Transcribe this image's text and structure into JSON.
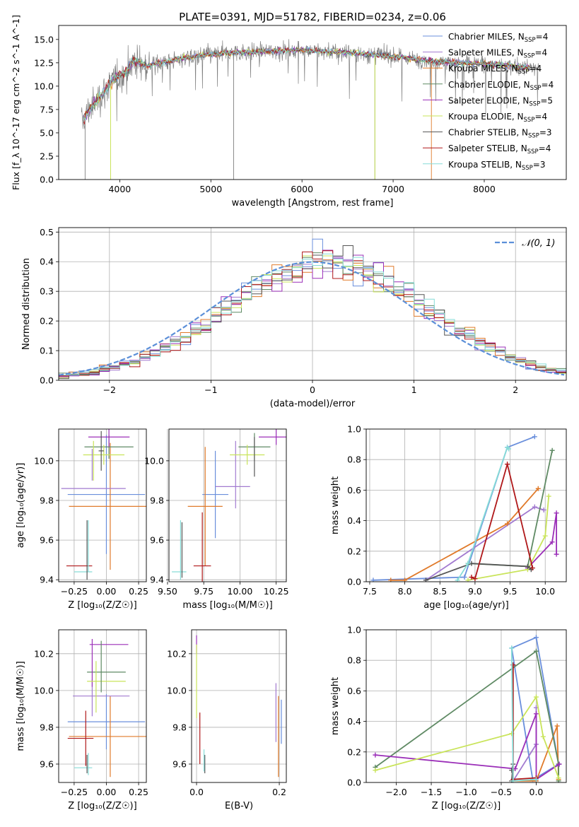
{
  "colors": {
    "Chabrier MILES": "#6a8fdc",
    "Salpeter MILES": "#a27ad0",
    "Kroupa MILES": "#e07a2a",
    "Chabrier ELODIE": "#5f8a64",
    "Salpeter ELODIE": "#9b2fb8",
    "Kroupa ELODIE": "#c9e45a",
    "Chabrier STELIB": "#555555",
    "Salpeter STELIB": "#b0181a",
    "Kroupa STELIB": "#86dcd7",
    "gaussian": "#5b8fd8",
    "data": "#808080",
    "pink": "#e58aa8"
  },
  "chart_data": [
    {
      "id": "spectrum",
      "type": "line",
      "title": "PLATE=0391, MJD=51782, FIBERID=0234, z=0.06",
      "xlabel": "wavelength [Angstrom, rest frame]",
      "ylabel": "Flux [f_λ 10^-17 erg cm^-2 s^-1 A^-1]",
      "xlim": [
        3330,
        8900
      ],
      "ylim": [
        0,
        16.5
      ],
      "xticks": [
        4000,
        5000,
        6000,
        7000,
        8000
      ],
      "yticks": [
        0.0,
        2.5,
        5.0,
        7.5,
        10.0,
        12.5,
        15.0
      ],
      "legend_position": "right",
      "legend": [
        {
          "model": "Chabrier MILES",
          "label": "Chabrier MILES, N",
          "sub": "SSP",
          "tail": "=4"
        },
        {
          "model": "Salpeter MILES",
          "label": "Salpeter MILES, N",
          "sub": "SSP",
          "tail": "=4"
        },
        {
          "model": "Kroupa MILES",
          "label": "Kroupa MILES, N",
          "sub": "SSP",
          "tail": "=4"
        },
        {
          "model": "Chabrier ELODIE",
          "label": "Chabrier ELODIE, N",
          "sub": "SSP",
          "tail": "=4"
        },
        {
          "model": "Salpeter ELODIE",
          "label": "Salpeter ELODIE, N",
          "sub": "SSP",
          "tail": "=5"
        },
        {
          "model": "Kroupa ELODIE",
          "label": "Kroupa ELODIE, N",
          "sub": "SSP",
          "tail": "=4"
        },
        {
          "model": "Chabrier STELIB",
          "label": "Chabrier STELIB, N",
          "sub": "SSP",
          "tail": "=3"
        },
        {
          "model": "Salpeter STELIB",
          "label": "Salpeter STELIB, N",
          "sub": "SSP",
          "tail": "=4"
        },
        {
          "model": "Kroupa STELIB",
          "label": "Kroupa STELIB, N",
          "sub": "SSP",
          "tail": "=3"
        }
      ],
      "continuum": [
        [
          3580,
          6.0
        ],
        [
          3650,
          7.3
        ],
        [
          3750,
          8.5
        ],
        [
          3850,
          9.7
        ],
        [
          3950,
          10.9
        ],
        [
          4050,
          11.3
        ],
        [
          4150,
          12.7
        ],
        [
          4300,
          12.2
        ],
        [
          4500,
          12.6
        ],
        [
          4750,
          13.1
        ],
        [
          5000,
          13.4
        ],
        [
          5250,
          13.6
        ],
        [
          5500,
          13.7
        ],
        [
          5750,
          13.8
        ],
        [
          6000,
          13.9
        ],
        [
          6250,
          13.7
        ],
        [
          6500,
          13.6
        ],
        [
          6750,
          13.4
        ],
        [
          7000,
          13.2
        ],
        [
          7250,
          12.9
        ],
        [
          7500,
          12.6
        ],
        [
          7750,
          12.5
        ],
        [
          8000,
          12.4
        ],
        [
          8250,
          12.2
        ],
        [
          8500,
          12.0
        ],
        [
          8600,
          11.9
        ]
      ],
      "data_noise_amplitude": 1.6
    },
    {
      "id": "residuals",
      "type": "step-histogram",
      "xlabel": "(data-model)/error",
      "ylabel": "Normed distribution",
      "xlim": [
        -2.5,
        2.5
      ],
      "ylim": [
        0,
        0.515
      ],
      "xticks": [
        -2,
        -1,
        0,
        1,
        2
      ],
      "yticks": [
        0.0,
        0.1,
        0.2,
        0.3,
        0.4,
        0.5
      ],
      "legend": "𝒩(0, 1)",
      "legend_position": "top-right",
      "bin_width": 0.1,
      "series_models": [
        "Chabrier MILES",
        "Salpeter MILES",
        "Kroupa MILES",
        "Chabrier ELODIE",
        "Salpeter ELODIE",
        "Kroupa ELODIE",
        "Chabrier STELIB",
        "Salpeter STELIB",
        "Kroupa STELIB"
      ]
    },
    {
      "id": "age_vs_Z",
      "type": "errorbar",
      "xlabel": "Z [log₁₀(Z/Z☉)]",
      "ylabel": "age  [log₁₀(age/yr)]",
      "xlim": [
        -0.37,
        0.31
      ],
      "ylim": [
        9.39,
        10.16
      ],
      "xticks": [
        -0.25,
        0.0,
        0.25
      ],
      "yticks": [
        9.4,
        9.6,
        9.8,
        10.0
      ],
      "points": [
        {
          "model": "Chabrier MILES",
          "x": 0.0,
          "xerr": 0.3,
          "y": 9.83,
          "yerr": 0.3
        },
        {
          "model": "Kroupa MILES",
          "x": 0.03,
          "xerr": 0.32,
          "y": 9.77,
          "yerr": 0.32
        },
        {
          "model": "Chabrier ELODIE",
          "x": 0.02,
          "xerr": 0.19,
          "y": 10.07,
          "yerr": 0.06
        },
        {
          "model": "Salpeter ELODIE",
          "x": 0.02,
          "xerr": 0.16,
          "y": 10.12,
          "yerr": 0.05
        },
        {
          "model": "Kroupa ELODIE",
          "x": -0.02,
          "xerr": 0.16,
          "y": 10.03,
          "yerr": 0.05
        },
        {
          "model": "Chabrier STELIB",
          "x": -0.04,
          "xerr": 0.02,
          "y": 10.05,
          "yerr": 0.1
        },
        {
          "model": "Salpeter STELIB",
          "x": -0.21,
          "xerr": 0.1,
          "y": 9.47,
          "yerr": 0.0
        },
        {
          "model": "Kroupa STELIB",
          "x": -0.18,
          "xerr": 0.07,
          "y": 9.44,
          "yerr": 0.0
        },
        {
          "model": "Chabrier STELIB",
          "x": -0.15,
          "xerr": 0.0,
          "y": 9.55,
          "yerr": 0.15
        },
        {
          "model": "Kroupa STELIB",
          "x": -0.14,
          "xerr": 0.0,
          "y": 9.57,
          "yerr": 0.13
        },
        {
          "model": "Salpeter MILES",
          "x": -0.1,
          "xerr": 0.25,
          "y": 9.86,
          "yerr": 0.0
        },
        {
          "model": "Salpeter MILES",
          "x": -0.11,
          "xerr": 0.0,
          "y": 9.98,
          "yerr": 0.08
        },
        {
          "model": "Kroupa ELODIE",
          "x": -0.1,
          "xerr": 0.0,
          "y": 10.0,
          "yerr": 0.1
        }
      ]
    },
    {
      "id": "age_vs_mass",
      "type": "errorbar",
      "xlabel": "mass [log₁₀(M/M☉)]",
      "ylabel": "",
      "xlim": [
        9.51,
        10.32
      ],
      "ylim": [
        9.39,
        10.16
      ],
      "xticks": [
        9.5,
        9.75,
        10.0,
        10.25
      ],
      "yticks": [
        9.4,
        9.6,
        9.8,
        10.0
      ],
      "points": [
        {
          "model": "Chabrier MILES",
          "x": 9.83,
          "xerr": 0.09,
          "y": 9.83,
          "yerr": 0.22
        },
        {
          "model": "Kroupa MILES",
          "x": 9.76,
          "xerr": 0.12,
          "y": 9.77,
          "yerr": 0.3
        },
        {
          "model": "Salpeter MILES",
          "x": 9.95,
          "xerr": 0.12,
          "y": 9.87,
          "yerr": 0.0
        },
        {
          "model": "Salpeter MILES",
          "x": 9.97,
          "xerr": 0.0,
          "y": 9.93,
          "yerr": 0.17
        },
        {
          "model": "Chabrier ELODIE",
          "x": 10.1,
          "xerr": 0.11,
          "y": 10.07,
          "yerr": 0.07
        },
        {
          "model": "Salpeter ELODIE",
          "x": 10.25,
          "xerr": 0.12,
          "y": 10.12,
          "yerr": 0.04
        },
        {
          "model": "Kroupa ELODIE",
          "x": 10.05,
          "xerr": 0.12,
          "y": 10.03,
          "yerr": 0.05
        },
        {
          "model": "Chabrier STELIB",
          "x": 10.1,
          "xerr": 0.0,
          "y": 10.02,
          "yerr": 0.1
        },
        {
          "model": "Salpeter STELIB",
          "x": 9.74,
          "xerr": 0.06,
          "y": 9.47,
          "yerr": 0.27
        },
        {
          "model": "Kroupa STELIB",
          "x": 9.58,
          "xerr": 0.05,
          "y": 9.44,
          "yerr": 0.0
        },
        {
          "model": "Chabrier STELIB",
          "x": 9.6,
          "xerr": 0.0,
          "y": 9.55,
          "yerr": 0.14
        },
        {
          "model": "Kroupa STELIB",
          "x": 9.59,
          "xerr": 0.0,
          "y": 9.55,
          "yerr": 0.15
        }
      ]
    },
    {
      "id": "mass_weight_vs_age",
      "type": "line",
      "xlabel": "age  [log₁₀(age/yr)]",
      "ylabel": "mass weight",
      "xlim": [
        7.45,
        10.3
      ],
      "ylim": [
        0,
        1.0
      ],
      "xticks": [
        7.5,
        8.0,
        8.5,
        9.0,
        9.5,
        10.0
      ],
      "yticks": [
        0.0,
        0.2,
        0.4,
        0.6,
        0.8,
        1.0
      ],
      "series": [
        {
          "model": "Chabrier MILES",
          "x": [
            7.55,
            8.85,
            9.46,
            9.85
          ],
          "y": [
            0.01,
            0.03,
            0.88,
            0.95
          ]
        },
        {
          "model": "Salpeter MILES",
          "x": [
            8.3,
            9.85,
            9.98
          ],
          "y": [
            0.01,
            0.49,
            0.47
          ]
        },
        {
          "model": "Kroupa MILES",
          "x": [
            7.8,
            8.0,
            9.46,
            9.9
          ],
          "y": [
            0.01,
            0.01,
            0.38,
            0.61
          ]
        },
        {
          "model": "Chabrier ELODIE",
          "x": [
            8.9,
            9.75,
            10.1
          ],
          "y": [
            0.12,
            0.1,
            0.86
          ]
        },
        {
          "model": "Salpeter ELODIE",
          "x": [
            9.75,
            10.1,
            10.16,
            10.16
          ],
          "y": [
            0.09,
            0.26,
            0.45,
            0.18
          ]
        },
        {
          "model": "Kroupa ELODIE",
          "x": [
            8.9,
            9.75,
            10.0,
            10.05
          ],
          "y": [
            0.01,
            0.08,
            0.3,
            0.56
          ]
        },
        {
          "model": "Chabrier STELIB",
          "x": [
            8.3,
            8.95,
            9.75,
            9.8
          ],
          "y": [
            0.01,
            0.12,
            0.1,
            0.08
          ]
        },
        {
          "model": "Salpeter STELIB",
          "x": [
            8.95,
            9.0,
            9.46,
            9.82
          ],
          "y": [
            0.03,
            0.02,
            0.77,
            0.09
          ]
        },
        {
          "model": "Kroupa STELIB",
          "x": [
            8.75,
            8.9,
            9.46,
            9.48
          ],
          "y": [
            0.01,
            0.12,
            0.88,
            0.87
          ]
        }
      ]
    },
    {
      "id": "mass_vs_Z",
      "type": "errorbar",
      "xlabel": "Z [log₁₀(Z/Z☉)]",
      "ylabel": "mass [log₁₀(M/M☉)]",
      "xlim": [
        -0.37,
        0.31
      ],
      "ylim": [
        9.5,
        10.33
      ],
      "xticks": [
        -0.25,
        0.0,
        0.25
      ],
      "yticks": [
        9.6,
        9.8,
        10.0,
        10.2
      ],
      "points": [
        {
          "model": "Chabrier MILES",
          "x": 0.0,
          "xerr": 0.3,
          "y": 9.83,
          "yerr": 0.15
        },
        {
          "model": "Kroupa MILES",
          "x": 0.03,
          "xerr": 0.32,
          "y": 9.75,
          "yerr": 0.22
        },
        {
          "model": "Salpeter MILES",
          "x": -0.04,
          "xerr": 0.22,
          "y": 9.97,
          "yerr": 0.0
        },
        {
          "model": "Salpeter MILES",
          "x": -0.11,
          "xerr": 0.0,
          "y": 9.96,
          "yerr": 0.1
        },
        {
          "model": "Chabrier ELODIE",
          "x": 0.0,
          "xerr": 0.15,
          "y": 10.1,
          "yerr": 0.0
        },
        {
          "model": "Salpeter ELODIE",
          "x": 0.02,
          "xerr": 0.15,
          "y": 10.25,
          "yerr": 0.0
        },
        {
          "model": "Salpeter ELODIE",
          "x": -0.11,
          "xerr": 0.0,
          "y": 10.15,
          "yerr": 0.13
        },
        {
          "model": "Kroupa ELODIE",
          "x": 0.0,
          "xerr": 0.15,
          "y": 10.05,
          "yerr": 0.0
        },
        {
          "model": "Kroupa ELODIE",
          "x": -0.08,
          "xerr": 0.0,
          "y": 10.02,
          "yerr": 0.14
        },
        {
          "model": "Chabrier ELODIE",
          "x": -0.04,
          "xerr": 0.0,
          "y": 10.13,
          "yerr": 0.14
        },
        {
          "model": "Salpeter STELIB",
          "x": -0.2,
          "xerr": 0.1,
          "y": 9.74,
          "yerr": 0.0
        },
        {
          "model": "Salpeter STELIB",
          "x": -0.16,
          "xerr": 0.0,
          "y": 9.74,
          "yerr": 0.15
        },
        {
          "model": "Kroupa STELIB",
          "x": -0.18,
          "xerr": 0.07,
          "y": 9.58,
          "yerr": 0.0
        },
        {
          "model": "Chabrier STELIB",
          "x": -0.15,
          "xerr": 0.0,
          "y": 9.6,
          "yerr": 0.05
        },
        {
          "model": "Kroupa STELIB",
          "x": -0.14,
          "xerr": 0.0,
          "y": 9.6,
          "yerr": 0.06
        }
      ]
    },
    {
      "id": "mass_vs_EBV",
      "type": "errorbar",
      "xlabel": "E(B-V)",
      "ylabel": "",
      "xlim": [
        -0.012,
        0.217
      ],
      "ylim": [
        9.5,
        10.33
      ],
      "xticks": [
        0.0,
        0.2
      ],
      "yticks": [
        9.6,
        9.8,
        10.0,
        10.2
      ],
      "points": [
        {
          "model": "Salpeter ELODIE",
          "x": 0.0,
          "xerr": 0.0,
          "y": 10.25,
          "yerr": 0.05
        },
        {
          "model": "Kroupa ELODIE",
          "x": 0.0,
          "xerr": 0.0,
          "y": 10.05,
          "yerr": 0.2
        },
        {
          "model": "Salpeter STELIB",
          "x": 0.008,
          "xerr": 0.0,
          "y": 9.74,
          "yerr": 0.14
        },
        {
          "model": "Chabrier STELIB",
          "x": 0.02,
          "xerr": 0.0,
          "y": 9.6,
          "yerr": 0.05
        },
        {
          "model": "Kroupa STELIB",
          "x": 0.018,
          "xerr": 0.0,
          "y": 9.62,
          "yerr": 0.06
        },
        {
          "model": "Salpeter MILES",
          "x": 0.192,
          "xerr": 0.0,
          "y": 9.88,
          "yerr": 0.16
        },
        {
          "model": "Kroupa MILES",
          "x": 0.198,
          "xerr": 0.0,
          "y": 9.75,
          "yerr": 0.22
        },
        {
          "model": "Chabrier MILES",
          "x": 0.205,
          "xerr": 0.0,
          "y": 9.83,
          "yerr": 0.12
        }
      ]
    },
    {
      "id": "mass_weight_vs_Z",
      "type": "line",
      "xlabel": "Z [log₁₀(Z/Z☉)]",
      "ylabel": "mass weight",
      "xlim": [
        -2.43,
        0.43
      ],
      "ylim": [
        0,
        1.0
      ],
      "xticks": [
        -2.0,
        -1.5,
        -1.0,
        -0.5,
        0.0
      ],
      "yticks": [
        0.0,
        0.2,
        0.4,
        0.6,
        0.8,
        1.0
      ],
      "series": [
        {
          "model": "Chabrier MILES",
          "x": [
            -0.05,
            -0.35,
            0.0,
            0.32,
            0.0
          ],
          "y": [
            0.02,
            0.88,
            0.95,
            0.12,
            0.03
          ]
        },
        {
          "model": "Salpeter MILES",
          "x": [
            0.0,
            0.0,
            -0.33
          ],
          "y": [
            0.49,
            0.25,
            0.01
          ]
        },
        {
          "model": "Kroupa MILES",
          "x": [
            -0.33,
            0.0,
            0.3,
            0.32
          ],
          "y": [
            0.01,
            0.01,
            0.37,
            0.02
          ]
        },
        {
          "model": "Chabrier ELODIE",
          "x": [
            -2.3,
            0.0,
            0.32,
            0.32
          ],
          "y": [
            0.1,
            0.86,
            0.12,
            0.01
          ]
        },
        {
          "model": "Salpeter ELODIE",
          "x": [
            -2.3,
            -0.3,
            0.0,
            0.0,
            0.33
          ],
          "y": [
            0.18,
            0.09,
            0.45,
            0.02,
            0.12
          ]
        },
        {
          "model": "Kroupa ELODIE",
          "x": [
            -2.3,
            -0.35,
            0.0,
            0.1,
            0.32
          ],
          "y": [
            0.08,
            0.32,
            0.56,
            0.3,
            0.03
          ]
        },
        {
          "model": "Chabrier STELIB",
          "x": [
            -0.35,
            -0.33,
            -0.35
          ],
          "y": [
            0.08,
            0.12,
            0.01
          ]
        },
        {
          "model": "Salpeter STELIB",
          "x": [
            -0.33,
            -0.33,
            0.0
          ],
          "y": [
            0.77,
            0.02,
            0.03
          ]
        },
        {
          "model": "Kroupa STELIB",
          "x": [
            -0.35,
            -0.33,
            0.0
          ],
          "y": [
            0.88,
            0.01,
            0.02
          ]
        }
      ]
    }
  ]
}
